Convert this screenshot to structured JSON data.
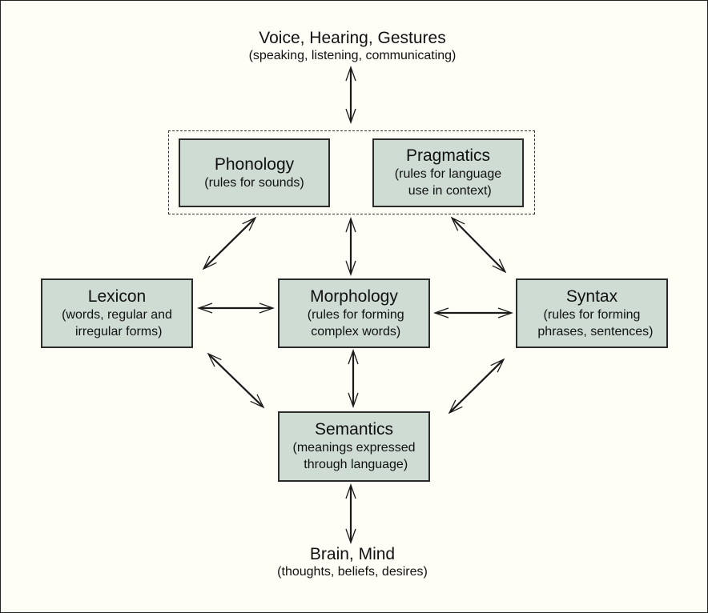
{
  "top": {
    "title": "Voice, Hearing, Gestures",
    "subtitle": "(speaking, listening, communicating)"
  },
  "bottom": {
    "title": "Brain, Mind",
    "subtitle": "(thoughts, beliefs, desires)"
  },
  "boxes": {
    "phonology": {
      "title": "Phonology",
      "subtitle": "(rules for sounds)"
    },
    "pragmatics": {
      "title": "Pragmatics",
      "subtitle": "(rules for language\n use in context)"
    },
    "lexicon": {
      "title": "Lexicon",
      "subtitle": "(words, regular and\n irregular forms)"
    },
    "morphology": {
      "title": "Morphology",
      "subtitle": " (rules for forming\n complex words)"
    },
    "syntax": {
      "title": "Syntax",
      "subtitle": "(rules for forming\n  phrases, sentences)"
    },
    "semantics": {
      "title": "Semantics",
      "subtitle": "(meanings expressed\n through language)"
    }
  },
  "colors": {
    "box_fill": "#cfdcd4",
    "background": "#fefdf6",
    "arrow": "#1a1a1a"
  }
}
